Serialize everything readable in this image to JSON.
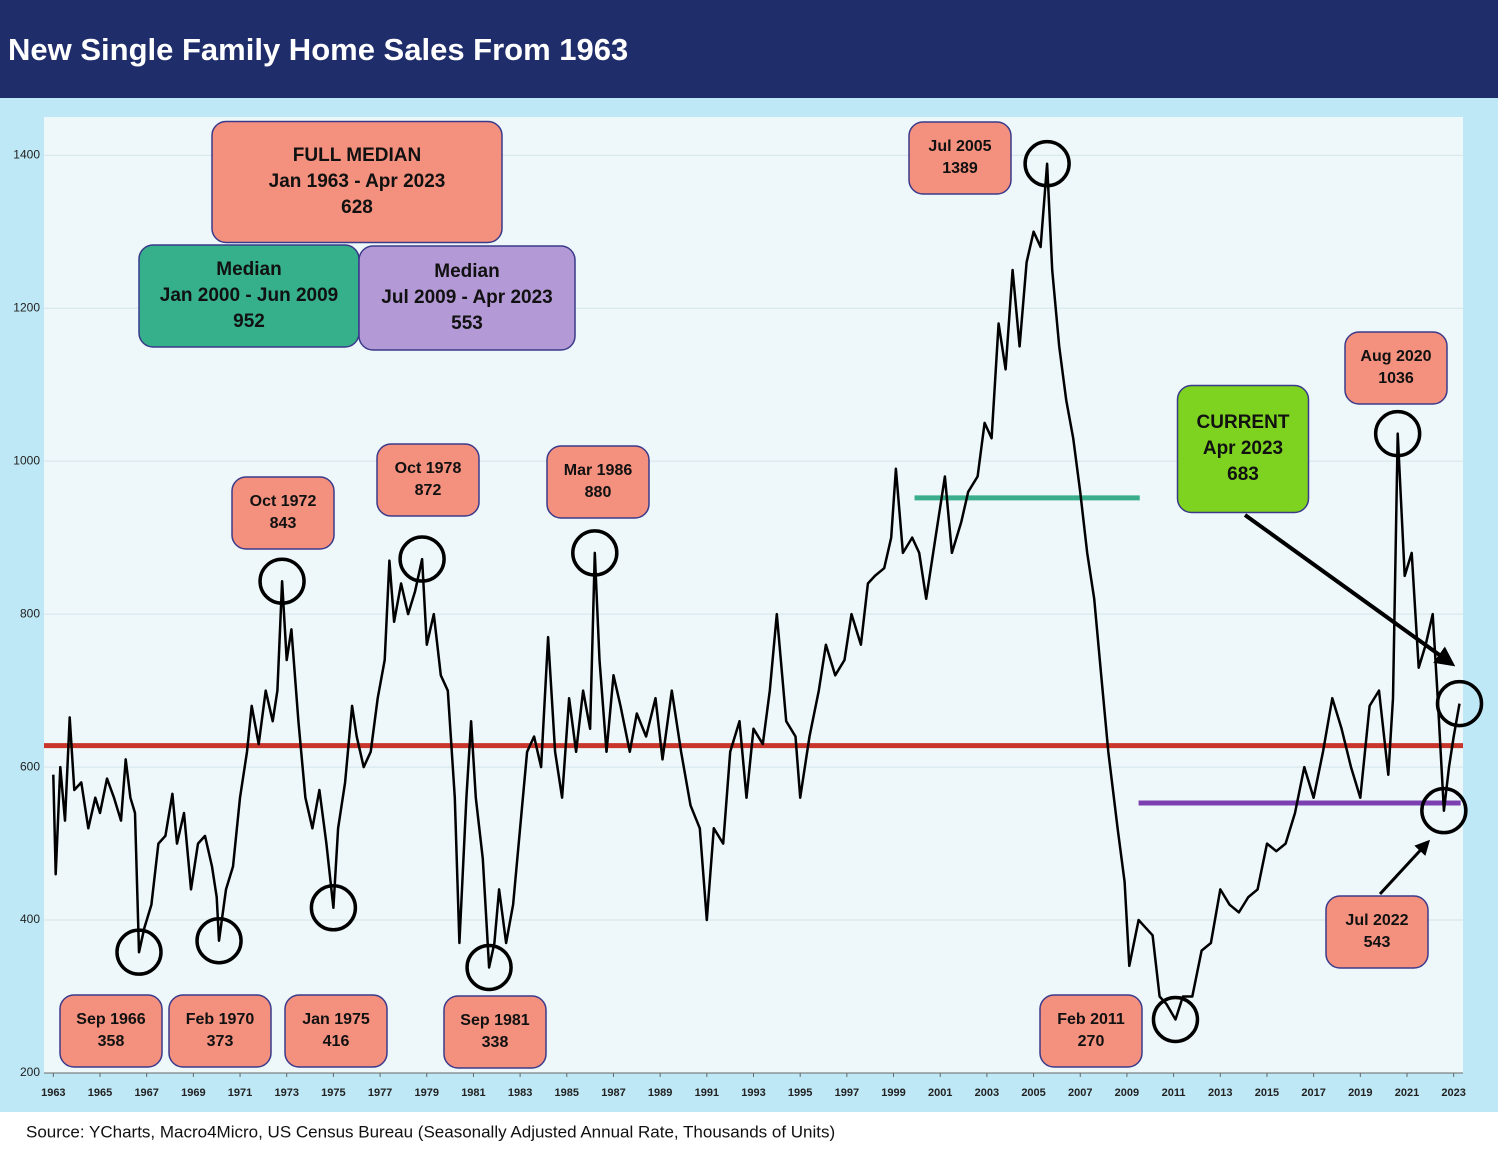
{
  "chart_data": {
    "type": "line",
    "title": "New Single Family Home Sales From 1963",
    "source": "Source: YCharts, Macro4Micro, US Census Bureau (Seasonally Adjusted Annual Rate, Thousands of Units)",
    "xlim": [
      1962.6,
      2023.4
    ],
    "xticks": [
      1963,
      1965,
      1967,
      1969,
      1971,
      1973,
      1975,
      1977,
      1979,
      1981,
      1983,
      1985,
      1987,
      1989,
      1991,
      1993,
      1995,
      1997,
      1999,
      2001,
      2003,
      2005,
      2007,
      2009,
      2011,
      2013,
      2015,
      2017,
      2019,
      2021,
      2023
    ],
    "ylim": [
      200,
      1450
    ],
    "yticks": [
      200,
      400,
      600,
      800,
      1000,
      1200,
      1400
    ],
    "grid": true,
    "series": [
      {
        "color": "#000000",
        "x": [
          1963.0,
          1963.1,
          1963.3,
          1963.5,
          1963.7,
          1963.9,
          1964.2,
          1964.5,
          1964.8,
          1965.0,
          1965.3,
          1965.6,
          1965.9,
          1966.1,
          1966.3,
          1966.5,
          1966.67,
          1966.9,
          1967.2,
          1967.5,
          1967.8,
          1968.1,
          1968.3,
          1968.6,
          1968.9,
          1969.2,
          1969.5,
          1969.8,
          1970.0,
          1970.1,
          1970.4,
          1970.7,
          1971.0,
          1971.3,
          1971.5,
          1971.8,
          1972.1,
          1972.4,
          1972.6,
          1972.8,
          1973.0,
          1973.2,
          1973.5,
          1973.8,
          1974.1,
          1974.4,
          1974.7,
          1975.0,
          1975.2,
          1975.5,
          1975.8,
          1976.0,
          1976.3,
          1976.6,
          1976.9,
          1977.2,
          1977.4,
          1977.6,
          1977.9,
          1978.2,
          1978.5,
          1978.8,
          1979.0,
          1979.3,
          1979.6,
          1979.9,
          1980.2,
          1980.4,
          1980.7,
          1980.9,
          1981.1,
          1981.4,
          1981.67,
          1981.9,
          1982.1,
          1982.4,
          1982.7,
          1983.0,
          1983.3,
          1983.6,
          1983.9,
          1984.2,
          1984.5,
          1984.8,
          1985.1,
          1985.4,
          1985.7,
          1986.0,
          1986.2,
          1986.4,
          1986.7,
          1987.0,
          1987.3,
          1987.7,
          1988.0,
          1988.4,
          1988.8,
          1989.1,
          1989.5,
          1989.9,
          1990.3,
          1990.7,
          1991.0,
          1991.3,
          1991.7,
          1992.0,
          1992.4,
          1992.7,
          1993.0,
          1993.4,
          1993.7,
          1994.0,
          1994.4,
          1994.8,
          1995.0,
          1995.4,
          1995.8,
          1996.1,
          1996.5,
          1996.9,
          1997.2,
          1997.6,
          1997.9,
          1998.2,
          1998.6,
          1998.9,
          1999.1,
          1999.4,
          1999.8,
          2000.1,
          2000.4,
          2000.8,
          2001.2,
          2001.5,
          2001.9,
          2002.2,
          2002.6,
          2002.9,
          2003.2,
          2003.5,
          2003.8,
          2004.1,
          2004.4,
          2004.7,
          2005.0,
          2005.3,
          2005.58,
          2005.8,
          2006.1,
          2006.4,
          2006.7,
          2007.0,
          2007.3,
          2007.6,
          2007.9,
          2008.2,
          2008.6,
          2008.9,
          2009.1,
          2009.5,
          2009.8,
          2010.1,
          2010.4,
          2010.7,
          2011.08,
          2011.4,
          2011.8,
          2012.2,
          2012.6,
          2013.0,
          2013.4,
          2013.8,
          2014.2,
          2014.6,
          2015.0,
          2015.4,
          2015.8,
          2016.2,
          2016.6,
          2017.0,
          2017.4,
          2017.8,
          2018.2,
          2018.6,
          2019.0,
          2019.4,
          2019.8,
          2020.2,
          2020.4,
          2020.6,
          2020.9,
          2021.2,
          2021.5,
          2021.8,
          2022.1,
          2022.3,
          2022.58,
          2022.8,
          2023.0,
          2023.25
        ],
        "values": [
          590,
          460,
          600,
          530,
          665,
          570,
          580,
          520,
          560,
          540,
          585,
          560,
          530,
          610,
          560,
          540,
          358,
          390,
          420,
          500,
          510,
          565,
          500,
          540,
          440,
          500,
          510,
          470,
          430,
          373,
          440,
          470,
          560,
          620,
          680,
          630,
          700,
          660,
          700,
          843,
          740,
          780,
          660,
          560,
          520,
          570,
          500,
          416,
          520,
          580,
          680,
          640,
          600,
          620,
          690,
          740,
          870,
          790,
          840,
          800,
          830,
          872,
          760,
          800,
          720,
          700,
          560,
          370,
          560,
          660,
          560,
          480,
          338,
          370,
          440,
          370,
          420,
          520,
          620,
          640,
          600,
          770,
          620,
          560,
          690,
          620,
          700,
          650,
          880,
          740,
          620,
          720,
          680,
          620,
          670,
          640,
          690,
          610,
          700,
          620,
          550,
          520,
          400,
          520,
          500,
          620,
          660,
          560,
          650,
          630,
          700,
          800,
          660,
          640,
          560,
          640,
          700,
          760,
          720,
          740,
          800,
          760,
          840,
          850,
          860,
          900,
          990,
          880,
          900,
          880,
          820,
          900,
          980,
          880,
          920,
          960,
          980,
          1050,
          1030,
          1180,
          1120,
          1250,
          1150,
          1260,
          1300,
          1280,
          1389,
          1250,
          1150,
          1080,
          1030,
          960,
          880,
          820,
          720,
          620,
          520,
          450,
          340,
          400,
          390,
          380,
          300,
          290,
          270,
          300,
          300,
          360,
          370,
          440,
          420,
          410,
          430,
          440,
          500,
          490,
          500,
          540,
          600,
          560,
          620,
          690,
          650,
          600,
          560,
          680,
          700,
          590,
          690,
          1036,
          850,
          880,
          730,
          760,
          800,
          700,
          543,
          600,
          640,
          683
        ]
      }
    ],
    "medians": [
      {
        "title": "FULL MEDIAN",
        "period": "Jan 1963 - Apr 2023",
        "value": 628,
        "color": "#c8352a",
        "box_color": "#f4907e"
      },
      {
        "title": "Median",
        "period": "Jan 2000 - Jun 2009",
        "value": 952,
        "color": "#3aae8c",
        "box_color": "#35b08a",
        "xrange": [
          1999.9,
          2009.55
        ]
      },
      {
        "title": "Median",
        "period": "Jul 2009 - Apr 2023",
        "value": 553,
        "color": "#7b3fb0",
        "box_color": "#b39ad6",
        "xrange": [
          2009.5,
          2023.3
        ]
      }
    ],
    "annotations": [
      {
        "label": "Sep 1966",
        "x": 1966.67,
        "value": 358
      },
      {
        "label": "Feb 1970",
        "x": 1970.1,
        "value": 373
      },
      {
        "label": "Jan 1975",
        "x": 1975.0,
        "value": 416
      },
      {
        "label": "Sep 1981",
        "x": 1981.67,
        "value": 338
      },
      {
        "label": "Oct 1972",
        "x": 1972.8,
        "value": 843
      },
      {
        "label": "Oct 1978",
        "x": 1978.8,
        "value": 872
      },
      {
        "label": "Mar 1986",
        "x": 1986.2,
        "value": 880
      },
      {
        "label": "Jul 2005",
        "x": 2005.58,
        "value": 1389
      },
      {
        "label": "Feb 2011",
        "x": 2011.08,
        "value": 270
      },
      {
        "label": "Aug 2020",
        "x": 2020.6,
        "value": 1036
      },
      {
        "label": "Jul 2022",
        "x": 2022.58,
        "value": 543
      }
    ],
    "current": {
      "title": "CURRENT",
      "label": "Apr 2023",
      "x": 2023.25,
      "value": 683
    }
  }
}
